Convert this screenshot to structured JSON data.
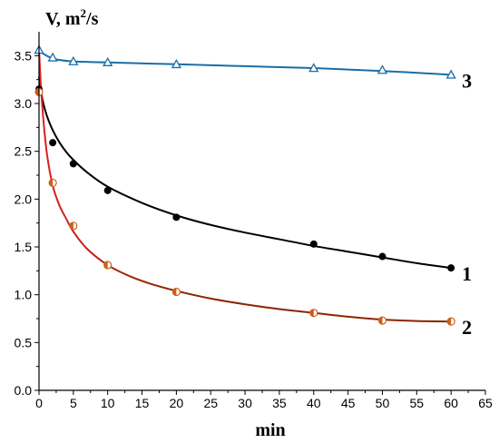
{
  "chart_data": {
    "type": "scatter",
    "xlabel": "min",
    "ylabel": "V, m",
    "ylabel_sup": "2",
    "ylabel_tail": "/s",
    "xlim": [
      0,
      65
    ],
    "ylim": [
      0,
      3.75
    ],
    "x_ticks": [
      0,
      5,
      10,
      15,
      20,
      25,
      30,
      35,
      40,
      45,
      50,
      55,
      60,
      65
    ],
    "y_ticks": [
      0.0,
      0.5,
      1.0,
      1.5,
      2.0,
      2.5,
      3.0,
      3.5
    ],
    "y_tick_labels": [
      "0.0",
      "0.5",
      "1.0",
      "1.5",
      "2.0",
      "2.5",
      "3.0",
      "3.5"
    ],
    "grid": false,
    "series": [
      {
        "name": "1",
        "marker": "filled-circle",
        "color": "#000000",
        "line_color": "#000000",
        "x": [
          0,
          2,
          5,
          10,
          20,
          40,
          50,
          60
        ],
        "y": [
          3.15,
          2.59,
          2.37,
          2.09,
          1.81,
          1.53,
          1.4,
          1.28
        ],
        "fit": [
          [
            0,
            3.28
          ],
          [
            0.3,
            3.12
          ],
          [
            0.7,
            2.98
          ],
          [
            1.2,
            2.86
          ],
          [
            2,
            2.72
          ],
          [
            3,
            2.59
          ],
          [
            4,
            2.49
          ],
          [
            5,
            2.41
          ],
          [
            7,
            2.28
          ],
          [
            10,
            2.13
          ],
          [
            15,
            1.96
          ],
          [
            20,
            1.83
          ],
          [
            25,
            1.73
          ],
          [
            30,
            1.65
          ],
          [
            35,
            1.58
          ],
          [
            40,
            1.51
          ],
          [
            45,
            1.45
          ],
          [
            50,
            1.39
          ],
          [
            55,
            1.33
          ],
          [
            60,
            1.28
          ]
        ]
      },
      {
        "name": "2",
        "marker": "half-filled-circle",
        "color": "#8b2500",
        "line_color": "#8b2500",
        "line_color_start": "#e02020",
        "x": [
          0,
          2,
          5,
          10,
          20,
          40,
          50,
          60
        ],
        "y": [
          3.12,
          2.17,
          1.72,
          1.31,
          1.03,
          0.81,
          0.73,
          0.72
        ],
        "fit": [
          [
            0,
            3.57
          ],
          [
            0.3,
            3.15
          ],
          [
            0.7,
            2.78
          ],
          [
            1.2,
            2.45
          ],
          [
            2,
            2.14
          ],
          [
            3,
            1.93
          ],
          [
            4,
            1.79
          ],
          [
            5,
            1.66
          ],
          [
            7,
            1.48
          ],
          [
            10,
            1.31
          ],
          [
            13,
            1.2
          ],
          [
            16,
            1.12
          ],
          [
            20,
            1.04
          ],
          [
            25,
            0.96
          ],
          [
            30,
            0.9
          ],
          [
            35,
            0.85
          ],
          [
            40,
            0.81
          ],
          [
            45,
            0.77
          ],
          [
            50,
            0.74
          ],
          [
            55,
            0.725
          ],
          [
            60,
            0.72
          ]
        ]
      },
      {
        "name": "3",
        "marker": "open-triangle",
        "color": "#1a6ea8",
        "line_color": "#1a6ea8",
        "x": [
          0,
          2,
          5,
          10,
          20,
          40,
          50,
          60
        ],
        "y": [
          3.56,
          3.48,
          3.44,
          3.43,
          3.41,
          3.37,
          3.35,
          3.3
        ],
        "fit": [
          [
            0,
            3.55
          ],
          [
            2,
            3.47
          ],
          [
            5,
            3.44
          ],
          [
            10,
            3.43
          ],
          [
            20,
            3.41
          ],
          [
            30,
            3.39
          ],
          [
            40,
            3.37
          ],
          [
            50,
            3.34
          ],
          [
            60,
            3.3
          ]
        ]
      }
    ]
  }
}
